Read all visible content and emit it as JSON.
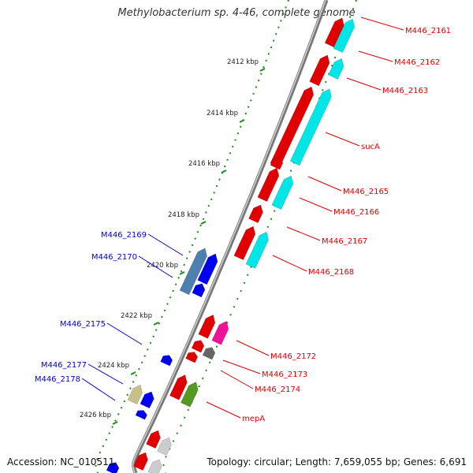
{
  "title": "Methylobacterium sp. 4-46, complete genome",
  "footer": {
    "accession": "Accession: NC_010511",
    "topology": "Topology: circular; Length: 7,659,055 bp; Genes: 6,691"
  },
  "colors": {
    "forward_label": "#dd0000",
    "reverse_label": "#0000cc",
    "backbone": "#888888",
    "tick": "#1a8c1a"
  },
  "ticks": [
    "2412 kbp",
    "2414 kbp",
    "2416 kbp",
    "2418 kbp",
    "2420 kbp",
    "2422 kbp",
    "2424 kbp",
    "2426 kbp"
  ],
  "genes_forward": [
    "M446_2161",
    "M446_2162",
    "M446_2163",
    "sucA",
    "M446_2165",
    "M446_2166",
    "M446_2167",
    "M446_2168",
    "M446_2172",
    "M446_2173",
    "M446_2174",
    "mepA"
  ],
  "genes_reverse": [
    "M446_2169",
    "M446_2170",
    "M446_2175",
    "M446_2177",
    "M446_2178"
  ]
}
